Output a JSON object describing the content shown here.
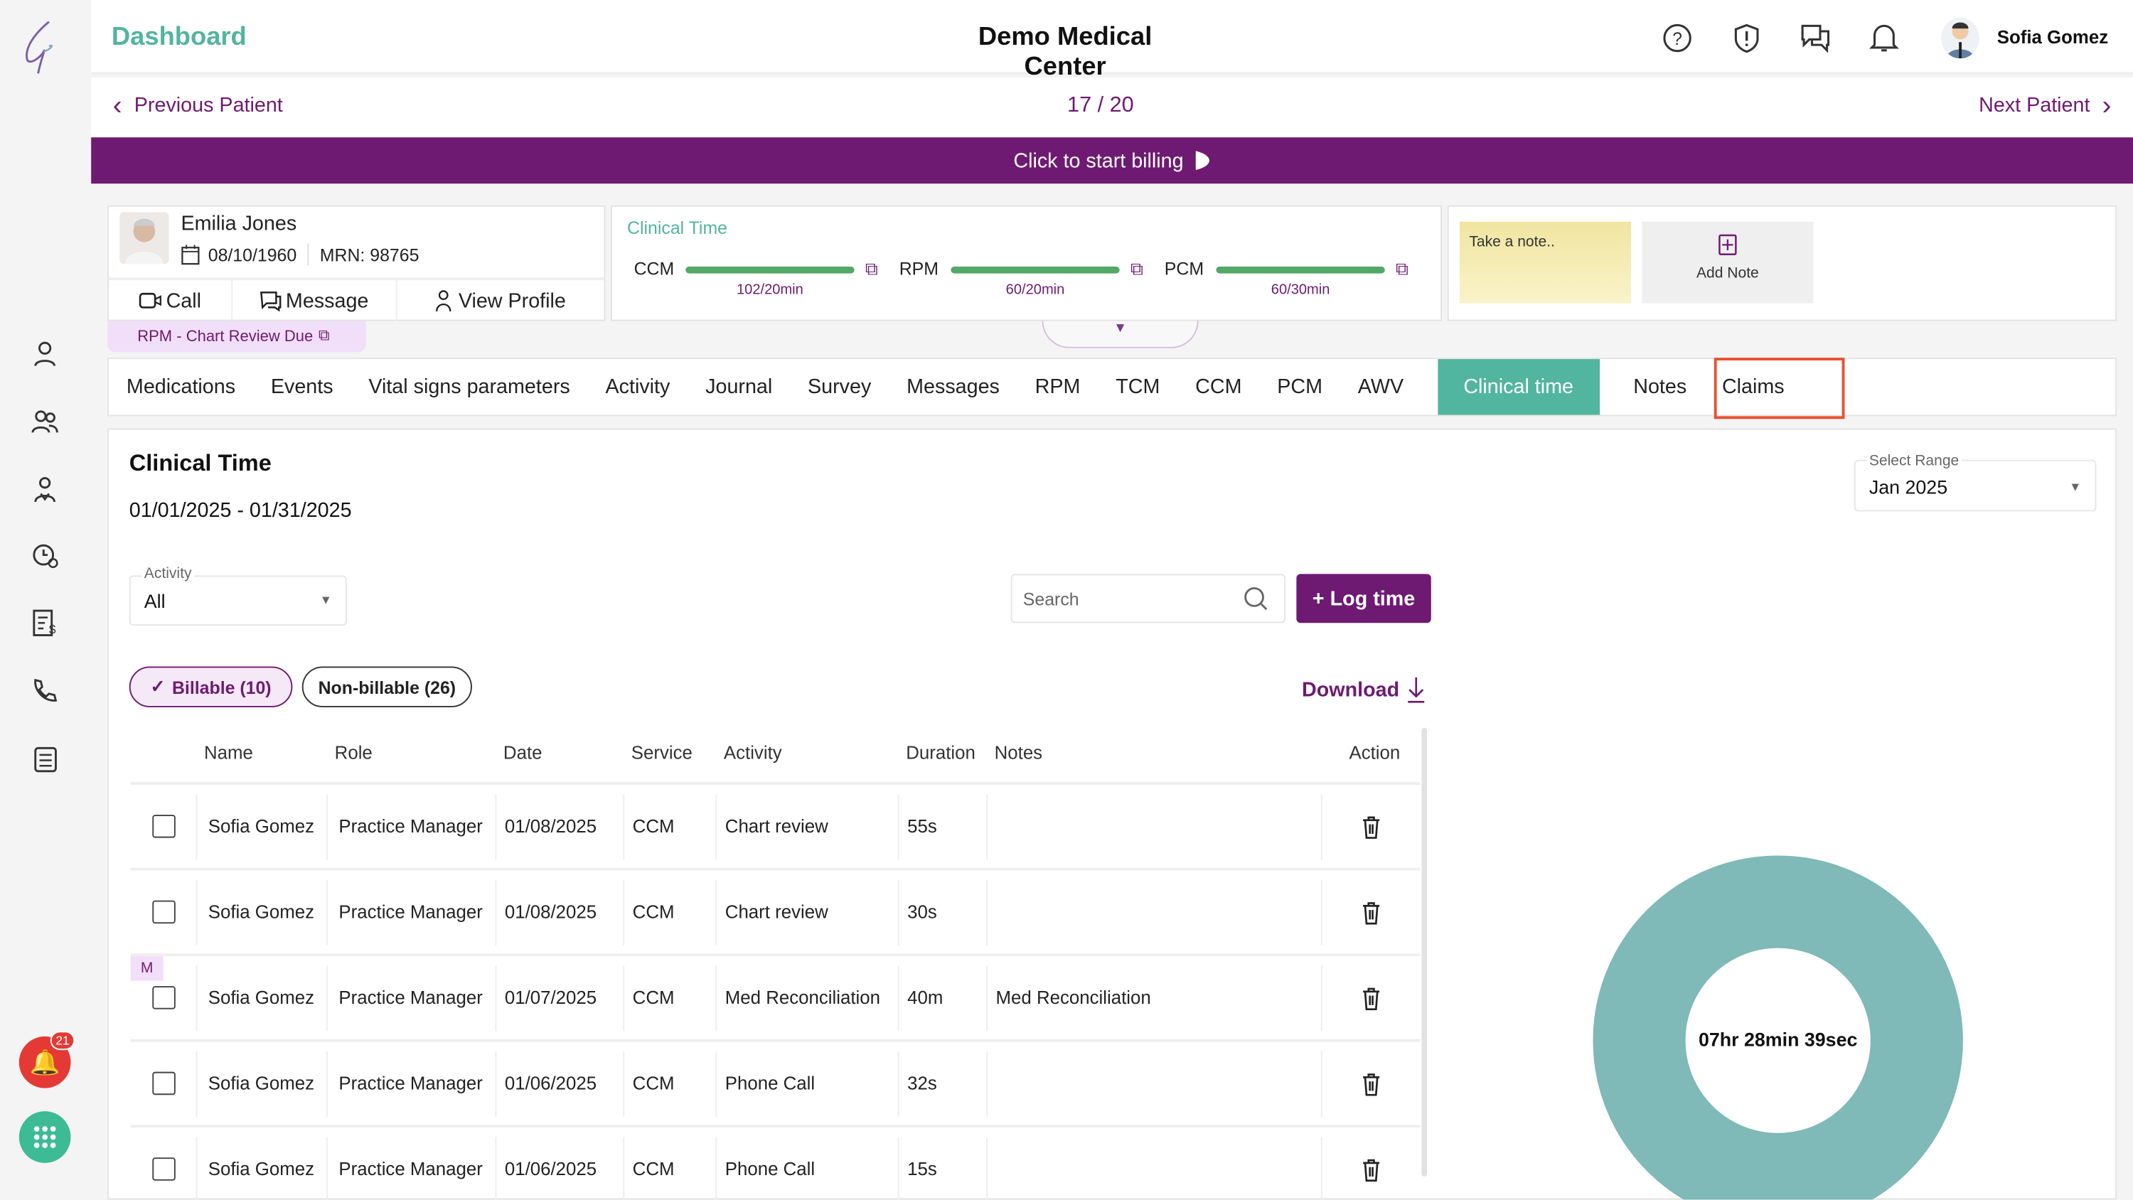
{
  "header": {
    "title": "Dashboard",
    "center_title": "Demo Medical Center",
    "user_name": "Sofia Gomez",
    "icons": [
      "help-icon",
      "alert-icon",
      "chat-icon",
      "bell-icon"
    ]
  },
  "navigation": {
    "previous": "Previous Patient",
    "position": "17 / 20",
    "next": "Next Patient"
  },
  "billing_banner": "Click to start billing",
  "patient": {
    "name": "Emilia Jones",
    "dob": "08/10/1960",
    "mrn": "MRN: 98765",
    "actions": [
      "Call",
      "Message",
      "View Profile"
    ],
    "alert": "RPM - Chart Review Due"
  },
  "clinical_time_card": {
    "title": "Clinical Time",
    "programs": [
      {
        "name": "CCM",
        "value": "102/20min",
        "progress": 100
      },
      {
        "name": "RPM",
        "value": "60/20min",
        "progress": 100
      },
      {
        "name": "PCM",
        "value": "60/30min",
        "progress": 100
      }
    ]
  },
  "notes": {
    "placeholder": "Take a note..",
    "add_label": "Add Note"
  },
  "tabs": [
    "Medications",
    "Events",
    "Vital signs parameters",
    "Activity",
    "Journal",
    "Survey",
    "Messages",
    "RPM",
    "TCM",
    "CCM",
    "PCM",
    "AWV",
    "Clinical time",
    "Notes",
    "Claims"
  ],
  "active_tab": "Clinical time",
  "highlighted_tab": "Claims",
  "main": {
    "title": "Clinical Time",
    "date_range": "01/01/2025 - 01/31/2025",
    "activity_label": "Activity",
    "activity_value": "All",
    "search_placeholder": "Search",
    "log_time": "+ Log time",
    "range_label": "Select Range",
    "range_value": "Jan 2025",
    "billable": "Billable (10)",
    "non_billable": "Non-billable (26)",
    "download": "Download",
    "total_time": "07hr 28min 39sec"
  },
  "table": {
    "columns": [
      "Name",
      "Role",
      "Date",
      "Service",
      "Activity",
      "Duration",
      "Notes",
      "Action"
    ],
    "rows": [
      {
        "name": "Sofia Gomez",
        "role": "Practice Manager",
        "date": "01/08/2025",
        "service": "CCM",
        "activity": "Chart review",
        "duration": "55s",
        "notes": ""
      },
      {
        "name": "Sofia Gomez",
        "role": "Practice Manager",
        "date": "01/08/2025",
        "service": "CCM",
        "activity": "Chart review",
        "duration": "30s",
        "notes": ""
      },
      {
        "name": "Sofia Gomez",
        "role": "Practice Manager",
        "date": "01/07/2025",
        "service": "CCM",
        "activity": "Med Reconciliation",
        "duration": "40m",
        "notes": "Med Reconciliation",
        "badge": "M"
      },
      {
        "name": "Sofia Gomez",
        "role": "Practice Manager",
        "date": "01/06/2025",
        "service": "CCM",
        "activity": "Phone Call",
        "duration": "32s",
        "notes": ""
      },
      {
        "name": "Sofia Gomez",
        "role": "Practice Manager",
        "date": "01/06/2025",
        "service": "CCM",
        "activity": "Phone Call",
        "duration": "15s",
        "notes": ""
      }
    ]
  },
  "notification_count": "21",
  "colors": {
    "primary": "#6f1a72",
    "teal": "#52b5a0",
    "donut": "#7fb9b8",
    "progress": "#52a865",
    "highlight": "#e8502f"
  }
}
